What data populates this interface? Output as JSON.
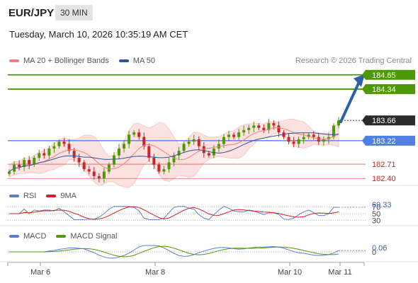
{
  "header": {
    "symbol": "EUR/JPY",
    "timeframe": "30 MIN",
    "datetime": "Tuesday, March 10, 2026 10:35:19 AM CET"
  },
  "legend_main": [
    {
      "label": "MA 20 + Bollinger Bands",
      "color": "#f08080"
    },
    {
      "label": "MA 50",
      "color": "#2f5597"
    }
  ],
  "credit": "Research © 2026 Trading Central",
  "legend_rsi": [
    {
      "label": "RSI",
      "color": "#5b7fcf"
    },
    {
      "label": "9MA",
      "color": "#d21f1f"
    }
  ],
  "legend_macd": [
    {
      "label": "MACD",
      "color": "#5b7fcf"
    },
    {
      "label": "MACD Signal",
      "color": "#4d9a06"
    }
  ],
  "colors": {
    "green": "#4d9a06",
    "blue_level": "#4f7fe0",
    "red_level": "#e06060",
    "arrow": "#2f5fa7",
    "candle_up": "#4d9a06",
    "candle_down": "#c62828",
    "band_fill": "#fbd7d7",
    "ma50": "#2f5597",
    "ma20": "#f08080"
  },
  "chart_data": {
    "type": "candlestick",
    "x_ticks": [
      "Mar 6",
      "Mar 8",
      "Mar 10",
      "Mar 11"
    ],
    "y_range": [
      182.25,
      184.8
    ],
    "levels": [
      {
        "value": 184.65,
        "label": "184.65",
        "kind": "target"
      },
      {
        "value": 184.34,
        "label": "184.34",
        "kind": "resistance"
      },
      {
        "value": 183.66,
        "label": "183.66",
        "kind": "last"
      },
      {
        "value": 183.22,
        "label": "183.22",
        "kind": "pivot"
      },
      {
        "value": 182.71,
        "label": "182.71",
        "kind": "support"
      },
      {
        "value": 182.4,
        "label": "182.40",
        "kind": "support"
      }
    ],
    "price_path": [
      182.55,
      182.7,
      182.65,
      182.8,
      182.7,
      182.85,
      182.95,
      182.9,
      183.05,
      183.1,
      183.2,
      183.15,
      183.0,
      182.85,
      182.75,
      182.6,
      182.55,
      182.45,
      182.4,
      182.55,
      182.7,
      182.9,
      183.05,
      183.15,
      183.35,
      183.4,
      183.3,
      183.1,
      182.85,
      182.7,
      182.55,
      182.6,
      182.75,
      182.9,
      183.0,
      183.15,
      183.2,
      183.25,
      183.1,
      182.95,
      182.9,
      183.05,
      183.15,
      183.3,
      183.35,
      183.3,
      183.4,
      183.45,
      183.5,
      183.55,
      183.5,
      183.45,
      183.6,
      183.55,
      183.4,
      183.3,
      183.2,
      183.15,
      183.25,
      183.3,
      183.35,
      183.3,
      183.2,
      183.25,
      183.3,
      183.55,
      183.66
    ],
    "rsi": {
      "levels": [
        "70",
        "50",
        "30"
      ],
      "last_value": "69.33"
    },
    "macd": {
      "zero_label": "0",
      "last_value": "0.06"
    }
  }
}
